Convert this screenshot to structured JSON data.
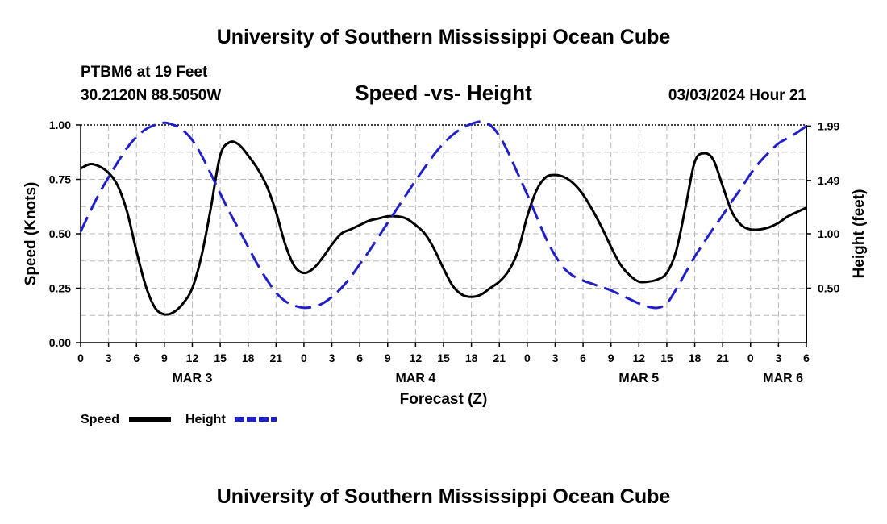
{
  "header": {
    "title": "University of Southern Mississippi Ocean Cube",
    "station": "PTBM6 at 19 Feet",
    "coords": "30.2120N  88.5050W",
    "chart_title": "Speed -vs- Height",
    "datetime": "03/03/2024 Hour 21"
  },
  "footer": {
    "title": "University of Southern Mississippi Ocean Cube"
  },
  "legend": {
    "speed_label": "Speed",
    "height_label": "Height"
  },
  "colors": {
    "speed": "#000000",
    "height": "#1f1fcc",
    "grid": "#b8b8b8"
  },
  "chart_data": {
    "type": "line",
    "xlabel": "Forecast (Z)",
    "ylabel": "Speed (Knots)",
    "y2label": "Height (feet)",
    "xlim": [
      0,
      78
    ],
    "ylim": [
      0,
      1.0
    ],
    "y2lim": [
      0.0,
      2.0
    ],
    "x_ticks": [
      0,
      3,
      6,
      9,
      12,
      15,
      18,
      21,
      24,
      27,
      30,
      33,
      36,
      39,
      42,
      45,
      48,
      51,
      54,
      57,
      60,
      63,
      66,
      69,
      72,
      75,
      78
    ],
    "x_tick_labels": [
      "0",
      "3",
      "6",
      "9",
      "12",
      "15",
      "18",
      "21",
      "0",
      "3",
      "6",
      "9",
      "12",
      "15",
      "18",
      "21",
      "0",
      "3",
      "6",
      "9",
      "12",
      "15",
      "18",
      "21",
      "0",
      "3",
      "6"
    ],
    "y_ticks": [
      0,
      0.25,
      0.5,
      0.75,
      1.0
    ],
    "y_tick_labels": [
      "0.00",
      "0.25",
      "0.50",
      "0.75",
      "1.00"
    ],
    "y2_ticks": [
      0.5,
      1.0,
      1.49,
      1.99
    ],
    "y2_tick_labels": [
      "0.50",
      "1.00",
      "1.49",
      "1.99"
    ],
    "day_labels": [
      {
        "x": 12,
        "label": "MAR 3"
      },
      {
        "x": 36,
        "label": "MAR 4"
      },
      {
        "x": 60,
        "label": "MAR 5"
      },
      {
        "x": 75.5,
        "label": "MAR 6"
      }
    ],
    "series": [
      {
        "name": "Speed",
        "axis": "left",
        "style": "solid",
        "x": [
          0,
          1,
          2,
          3,
          4,
          5,
          6,
          7,
          8,
          9,
          10,
          11,
          12,
          13,
          14,
          15,
          16,
          17,
          18,
          19,
          20,
          21,
          22,
          23,
          24,
          25,
          26,
          27,
          28,
          29,
          30,
          31,
          32,
          33,
          34,
          35,
          36,
          37,
          38,
          39,
          40,
          41,
          42,
          43,
          44,
          45,
          46,
          47,
          48,
          49,
          50,
          51,
          52,
          53,
          54,
          55,
          56,
          57,
          58,
          59,
          60,
          61,
          62,
          63,
          64,
          65,
          66,
          67,
          68,
          69,
          70,
          71,
          72,
          73,
          74,
          75,
          76,
          77,
          78
        ],
        "values": [
          0.8,
          0.82,
          0.81,
          0.78,
          0.72,
          0.6,
          0.42,
          0.26,
          0.16,
          0.13,
          0.14,
          0.18,
          0.25,
          0.4,
          0.62,
          0.86,
          0.92,
          0.91,
          0.86,
          0.8,
          0.72,
          0.6,
          0.45,
          0.35,
          0.32,
          0.34,
          0.39,
          0.45,
          0.5,
          0.52,
          0.54,
          0.56,
          0.57,
          0.58,
          0.58,
          0.57,
          0.54,
          0.5,
          0.43,
          0.34,
          0.26,
          0.22,
          0.21,
          0.22,
          0.25,
          0.28,
          0.33,
          0.42,
          0.58,
          0.7,
          0.76,
          0.77,
          0.76,
          0.73,
          0.68,
          0.61,
          0.53,
          0.44,
          0.36,
          0.31,
          0.28,
          0.28,
          0.29,
          0.32,
          0.42,
          0.62,
          0.83,
          0.87,
          0.84,
          0.72,
          0.6,
          0.54,
          0.52,
          0.52,
          0.53,
          0.55,
          0.58,
          0.6,
          0.62
        ]
      },
      {
        "name": "Height",
        "axis": "right",
        "style": "dashed",
        "x": [
          0,
          1,
          2,
          3,
          4,
          5,
          6,
          7,
          8,
          9,
          10,
          11,
          12,
          13,
          14,
          15,
          16,
          17,
          18,
          19,
          20,
          21,
          22,
          23,
          24,
          25,
          26,
          27,
          28,
          29,
          30,
          31,
          32,
          33,
          34,
          35,
          36,
          37,
          38,
          39,
          40,
          41,
          42,
          43,
          44,
          45,
          46,
          47,
          48,
          49,
          50,
          51,
          52,
          53,
          54,
          55,
          56,
          57,
          58,
          59,
          60,
          61,
          62,
          63,
          64,
          65,
          66,
          67,
          68,
          69,
          70,
          71,
          72,
          73,
          74,
          75,
          76,
          77,
          78
        ],
        "values": [
          1.02,
          1.2,
          1.37,
          1.52,
          1.66,
          1.79,
          1.89,
          1.96,
          2.0,
          2.02,
          2.0,
          1.95,
          1.86,
          1.72,
          1.55,
          1.37,
          1.2,
          1.04,
          0.88,
          0.72,
          0.58,
          0.46,
          0.38,
          0.34,
          0.32,
          0.33,
          0.36,
          0.42,
          0.5,
          0.6,
          0.72,
          0.84,
          0.97,
          1.1,
          1.23,
          1.36,
          1.49,
          1.61,
          1.73,
          1.83,
          1.91,
          1.97,
          2.01,
          2.03,
          2.0,
          1.9,
          1.74,
          1.55,
          1.36,
          1.16,
          0.96,
          0.8,
          0.68,
          0.61,
          0.57,
          0.54,
          0.51,
          0.48,
          0.44,
          0.4,
          0.36,
          0.33,
          0.32,
          0.36,
          0.49,
          0.64,
          0.79,
          0.92,
          1.05,
          1.17,
          1.3,
          1.42,
          1.55,
          1.66,
          1.75,
          1.83,
          1.88,
          1.93,
          1.99
        ]
      }
    ]
  }
}
